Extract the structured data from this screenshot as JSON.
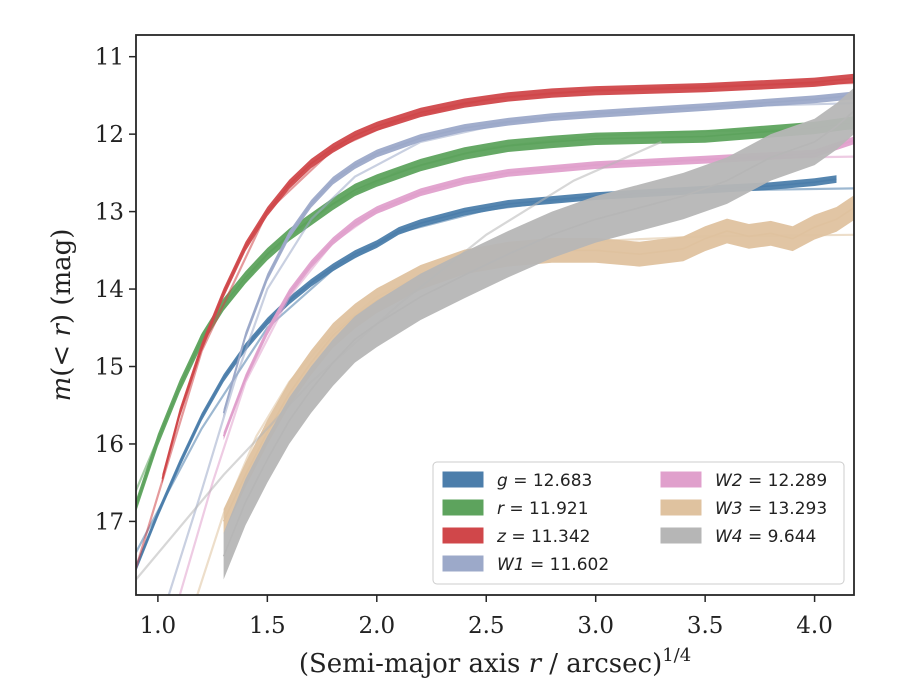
{
  "chart_data": {
    "type": "line",
    "xlabel": "(Semi-major axis r / arcsec)^1/4",
    "ylabel": "m(< r) (mag)",
    "xlim": [
      0.9,
      4.18
    ],
    "ylim": [
      17.95,
      10.72
    ],
    "y_inverted": true,
    "grid": false,
    "legend_position": "bottom-right",
    "x_ticks": [
      1.0,
      1.5,
      2.0,
      2.5,
      3.0,
      3.5,
      4.0
    ],
    "x_tick_labels": [
      "1.0",
      "1.5",
      "2.0",
      "2.5",
      "3.0",
      "3.5",
      "4.0"
    ],
    "y_ticks": [
      11,
      12,
      13,
      14,
      15,
      16,
      17
    ],
    "y_tick_labels": [
      "11",
      "12",
      "13",
      "14",
      "15",
      "16",
      "17"
    ],
    "series": [
      {
        "name": "g = 12.683",
        "sym": "g",
        "value": "12.683",
        "color": "#4c7eab",
        "x": [
          0.9,
          1.0,
          1.1,
          1.2,
          1.3,
          1.4,
          1.5,
          1.6,
          1.7,
          1.8,
          1.9,
          2.0,
          2.1,
          2.2,
          2.4,
          2.6,
          2.8,
          3.0,
          3.3,
          3.6,
          3.8,
          4.0,
          4.1
        ],
        "y": [
          17.6,
          16.9,
          16.25,
          15.65,
          15.15,
          14.75,
          14.42,
          14.15,
          13.92,
          13.72,
          13.55,
          13.42,
          13.25,
          13.15,
          13.0,
          12.9,
          12.85,
          12.8,
          12.75,
          12.7,
          12.67,
          12.62,
          12.58
        ],
        "band": 0.05,
        "model": {
          "x": [
            0.9,
            1.2,
            1.5,
            1.8,
            2.1,
            2.5,
            3.0,
            3.5,
            4.18
          ],
          "y": [
            17.4,
            15.8,
            14.5,
            13.75,
            13.27,
            12.98,
            12.8,
            12.73,
            12.7
          ]
        }
      },
      {
        "name": "r = 11.921",
        "sym": "r",
        "value": "11.921",
        "color": "#5da35d",
        "x": [
          0.9,
          1.0,
          1.1,
          1.2,
          1.3,
          1.4,
          1.5,
          1.6,
          1.7,
          1.8,
          1.9,
          2.0,
          2.2,
          2.4,
          2.6,
          2.8,
          3.0,
          3.5,
          4.0,
          4.18
        ],
        "y": [
          16.8,
          15.95,
          15.25,
          14.65,
          14.2,
          13.85,
          13.55,
          13.3,
          13.1,
          12.9,
          12.72,
          12.6,
          12.4,
          12.25,
          12.15,
          12.1,
          12.06,
          12.03,
          11.92,
          11.85
        ],
        "band": 0.08,
        "model": {
          "x": [
            0.9,
            1.2,
            1.5,
            1.8,
            2.1,
            2.5,
            3.0,
            3.5,
            4.18
          ],
          "y": [
            16.6,
            14.6,
            13.55,
            12.9,
            12.48,
            12.18,
            12.02,
            11.96,
            11.93
          ]
        }
      },
      {
        "name": "z = 11.342",
        "sym": "z",
        "value": "11.342",
        "color": "#d0474a",
        "x": [
          1.02,
          1.1,
          1.2,
          1.3,
          1.4,
          1.5,
          1.6,
          1.7,
          1.8,
          1.9,
          2.0,
          2.2,
          2.4,
          2.6,
          2.8,
          3.0,
          3.5,
          4.0,
          4.18
        ],
        "y": [
          16.45,
          15.6,
          14.75,
          14.05,
          13.45,
          13.0,
          12.65,
          12.38,
          12.18,
          12.02,
          11.9,
          11.72,
          11.6,
          11.52,
          11.47,
          11.44,
          11.4,
          11.33,
          11.28
        ],
        "band": 0.06,
        "model": {
          "x": [
            0.9,
            1.2,
            1.5,
            1.8,
            2.1,
            2.5,
            3.0,
            3.5,
            4.18
          ],
          "y": [
            17.6,
            14.8,
            13.0,
            12.2,
            11.82,
            11.55,
            11.43,
            11.38,
            11.34
          ]
        }
      },
      {
        "name": "W1 = 11.602",
        "sym": "W1",
        "value": "11.602",
        "color": "#9ca9c9",
        "x": [
          1.3,
          1.4,
          1.5,
          1.6,
          1.7,
          1.8,
          1.9,
          2.0,
          2.2,
          2.4,
          2.6,
          2.8,
          3.0,
          3.5,
          4.0,
          4.18
        ],
        "y": [
          15.6,
          14.6,
          13.85,
          13.3,
          12.9,
          12.6,
          12.4,
          12.25,
          12.05,
          11.92,
          11.84,
          11.78,
          11.74,
          11.65,
          11.55,
          11.5
        ],
        "band": 0.05,
        "model": {
          "x": [
            1.05,
            1.2,
            1.35,
            1.5,
            1.7,
            1.9,
            2.2,
            2.6,
            3.0,
            3.5,
            4.18
          ],
          "y": [
            17.95,
            16.6,
            15.2,
            14.0,
            13.1,
            12.55,
            12.1,
            11.85,
            11.72,
            11.65,
            11.6
          ]
        }
      },
      {
        "name": "W2 = 12.289",
        "sym": "W2",
        "value": "12.289",
        "color": "#e0a0cc",
        "x": [
          1.3,
          1.4,
          1.5,
          1.6,
          1.7,
          1.8,
          1.9,
          2.0,
          2.2,
          2.4,
          2.6,
          2.8,
          3.0,
          3.5,
          4.0,
          4.18
        ],
        "y": [
          15.9,
          15.15,
          14.55,
          14.05,
          13.68,
          13.38,
          13.15,
          12.98,
          12.75,
          12.6,
          12.5,
          12.45,
          12.4,
          12.33,
          12.25,
          12.08
        ],
        "band": 0.05,
        "model": {
          "x": [
            1.1,
            1.25,
            1.4,
            1.6,
            1.8,
            2.0,
            2.3,
            2.7,
            3.2,
            3.7,
            4.18
          ],
          "y": [
            17.95,
            16.5,
            15.2,
            14.1,
            13.4,
            13.0,
            12.65,
            12.45,
            12.35,
            12.31,
            12.29
          ]
        }
      },
      {
        "name": "W3 = 13.293",
        "sym": "W3",
        "value": "13.293",
        "color": "#dfc29f",
        "x": [
          1.3,
          1.4,
          1.5,
          1.6,
          1.7,
          1.8,
          1.9,
          2.0,
          2.2,
          2.4,
          2.6,
          2.8,
          3.0,
          3.2,
          3.4,
          3.5,
          3.6,
          3.7,
          3.8,
          3.9,
          4.0,
          4.1,
          4.18
        ],
        "y": [
          17.0,
          16.4,
          15.85,
          15.35,
          14.95,
          14.6,
          14.35,
          14.15,
          13.85,
          13.65,
          13.55,
          13.5,
          13.5,
          13.55,
          13.48,
          13.35,
          13.25,
          13.32,
          13.28,
          13.35,
          13.2,
          13.1,
          12.95
        ],
        "band": 0.16,
        "model": {
          "x": [
            1.18,
            1.3,
            1.45,
            1.6,
            1.8,
            2.0,
            2.3,
            2.6,
            3.0,
            3.5,
            4.18
          ],
          "y": [
            17.95,
            16.9,
            15.9,
            15.2,
            14.55,
            14.1,
            13.7,
            13.5,
            13.38,
            13.32,
            13.3
          ]
        }
      },
      {
        "name": "W4 = 9.644",
        "sym": "W4",
        "value": "9.644",
        "color": "#b6b6b6",
        "x": [
          1.3,
          1.4,
          1.5,
          1.6,
          1.7,
          1.8,
          1.9,
          2.0,
          2.2,
          2.4,
          2.6,
          2.8,
          3.0,
          3.2,
          3.4,
          3.6,
          3.8,
          4.0,
          4.1,
          4.18
        ],
        "y": [
          17.45,
          16.75,
          16.2,
          15.7,
          15.3,
          14.95,
          14.65,
          14.45,
          14.1,
          13.82,
          13.55,
          13.3,
          13.1,
          12.95,
          12.8,
          12.6,
          12.3,
          12.1,
          11.9,
          11.7
        ],
        "band": 0.3,
        "model": {
          "x": [
            0.9,
            1.3,
            1.7,
            2.1,
            2.5,
            2.9,
            3.3
          ],
          "y": [
            17.75,
            16.4,
            15.2,
            14.2,
            13.3,
            12.6,
            12.1
          ]
        }
      }
    ]
  }
}
